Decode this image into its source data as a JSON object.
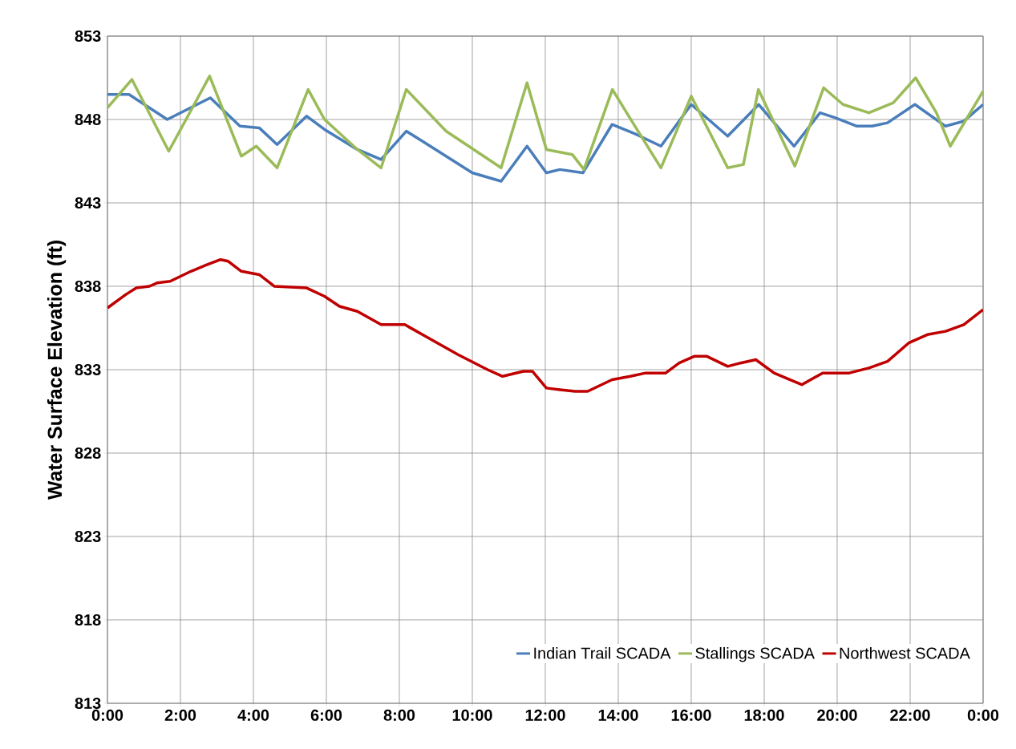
{
  "chart_data": {
    "type": "line",
    "ylabel": "Water Surface Elevation (ft)",
    "xlim": [
      0,
      24
    ],
    "xticks": [
      {
        "value": 0,
        "label": "0:00"
      },
      {
        "value": 2,
        "label": "2:00"
      },
      {
        "value": 4,
        "label": "4:00"
      },
      {
        "value": 6,
        "label": "6:00"
      },
      {
        "value": 8,
        "label": "8:00"
      },
      {
        "value": 10,
        "label": "10:00"
      },
      {
        "value": 12,
        "label": "12:00"
      },
      {
        "value": 14,
        "label": "14:00"
      },
      {
        "value": 16,
        "label": "16:00"
      },
      {
        "value": 18,
        "label": "18:00"
      },
      {
        "value": 20,
        "label": "20:00"
      },
      {
        "value": 22,
        "label": "22:00"
      },
      {
        "value": 24,
        "label": "0:00"
      }
    ],
    "ylim": [
      813,
      853
    ],
    "yticks": [
      813,
      818,
      823,
      828,
      833,
      838,
      843,
      848,
      853
    ],
    "grid": true,
    "legend": "bottom right",
    "marker": "none",
    "line_style": "solid",
    "series": [
      {
        "name": "Indian Trail SCADA",
        "color": "#4a7ebb",
        "x": [
          0,
          0.59,
          1.64,
          2.82,
          3.63,
          4.16,
          4.65,
          5.46,
          5.95,
          6.85,
          7.5,
          8.19,
          8.63,
          9.28,
          10.0,
          10.79,
          11.5,
          12.03,
          12.4,
          13.03,
          13.83,
          14.5,
          15.17,
          16.0,
          17.0,
          17.85,
          18.82,
          19.53,
          19.95,
          20.54,
          20.96,
          21.38,
          22.13,
          22.97,
          23.47,
          24
        ],
        "values": [
          849.5,
          849.5,
          848.0,
          849.3,
          847.6,
          847.5,
          846.5,
          848.2,
          847.4,
          846.2,
          845.6,
          847.3,
          846.7,
          845.8,
          844.8,
          844.3,
          846.4,
          844.8,
          845.0,
          844.8,
          847.7,
          847.1,
          846.4,
          848.9,
          847.0,
          848.9,
          846.4,
          848.4,
          848.1,
          847.6,
          847.6,
          847.8,
          848.9,
          847.6,
          847.9,
          848.9
        ]
      },
      {
        "name": "Stallings SCADA",
        "color": "#9bbb59",
        "x": [
          0,
          0.67,
          1.68,
          2.8,
          3.67,
          4.08,
          4.65,
          5.5,
          5.95,
          6.85,
          7.5,
          8.19,
          9.28,
          10.79,
          11.5,
          12.03,
          12.74,
          13.06,
          13.84,
          14.4,
          15.17,
          16.0,
          17.0,
          17.43,
          17.84,
          18.84,
          19.63,
          20.16,
          20.87,
          21.54,
          22.15,
          22.72,
          23.1,
          24
        ],
        "values": [
          848.7,
          850.4,
          846.1,
          850.6,
          845.8,
          846.4,
          845.1,
          849.8,
          848.0,
          846.2,
          845.1,
          849.8,
          847.3,
          845.1,
          850.2,
          846.2,
          845.9,
          845.0,
          849.8,
          847.8,
          845.1,
          849.4,
          845.1,
          845.3,
          849.8,
          845.2,
          849.9,
          848.9,
          848.4,
          849.0,
          850.5,
          848.4,
          846.4,
          849.7
        ]
      },
      {
        "name": "Northwest SCADA",
        "color": "#c00000",
        "x": [
          0,
          0.5,
          0.79,
          1.15,
          1.36,
          1.72,
          2.29,
          2.62,
          3.1,
          3.31,
          3.67,
          4.16,
          4.57,
          5.46,
          5.95,
          6.36,
          6.85,
          7.5,
          8.15,
          8.8,
          9.61,
          10.42,
          10.83,
          11.4,
          11.65,
          12.03,
          12.4,
          12.82,
          13.16,
          13.83,
          14.33,
          14.75,
          15.3,
          15.67,
          16.08,
          16.43,
          17.0,
          17.35,
          17.77,
          18.27,
          18.7,
          19.03,
          19.6,
          20.33,
          20.87,
          21.38,
          21.96,
          22.47,
          22.97,
          23.47,
          24
        ],
        "values": [
          836.7,
          837.5,
          837.9,
          838.0,
          838.2,
          838.3,
          838.9,
          839.2,
          839.6,
          839.5,
          838.9,
          838.7,
          838.0,
          837.9,
          837.4,
          836.8,
          836.5,
          835.7,
          835.7,
          834.9,
          833.9,
          833.0,
          832.6,
          832.9,
          832.9,
          831.9,
          831.8,
          831.7,
          831.7,
          832.4,
          832.6,
          832.8,
          832.8,
          833.4,
          833.8,
          833.8,
          833.2,
          833.4,
          833.6,
          832.8,
          832.4,
          832.1,
          832.8,
          832.8,
          833.1,
          833.5,
          834.6,
          835.1,
          835.3,
          835.7,
          836.6
        ]
      }
    ]
  }
}
